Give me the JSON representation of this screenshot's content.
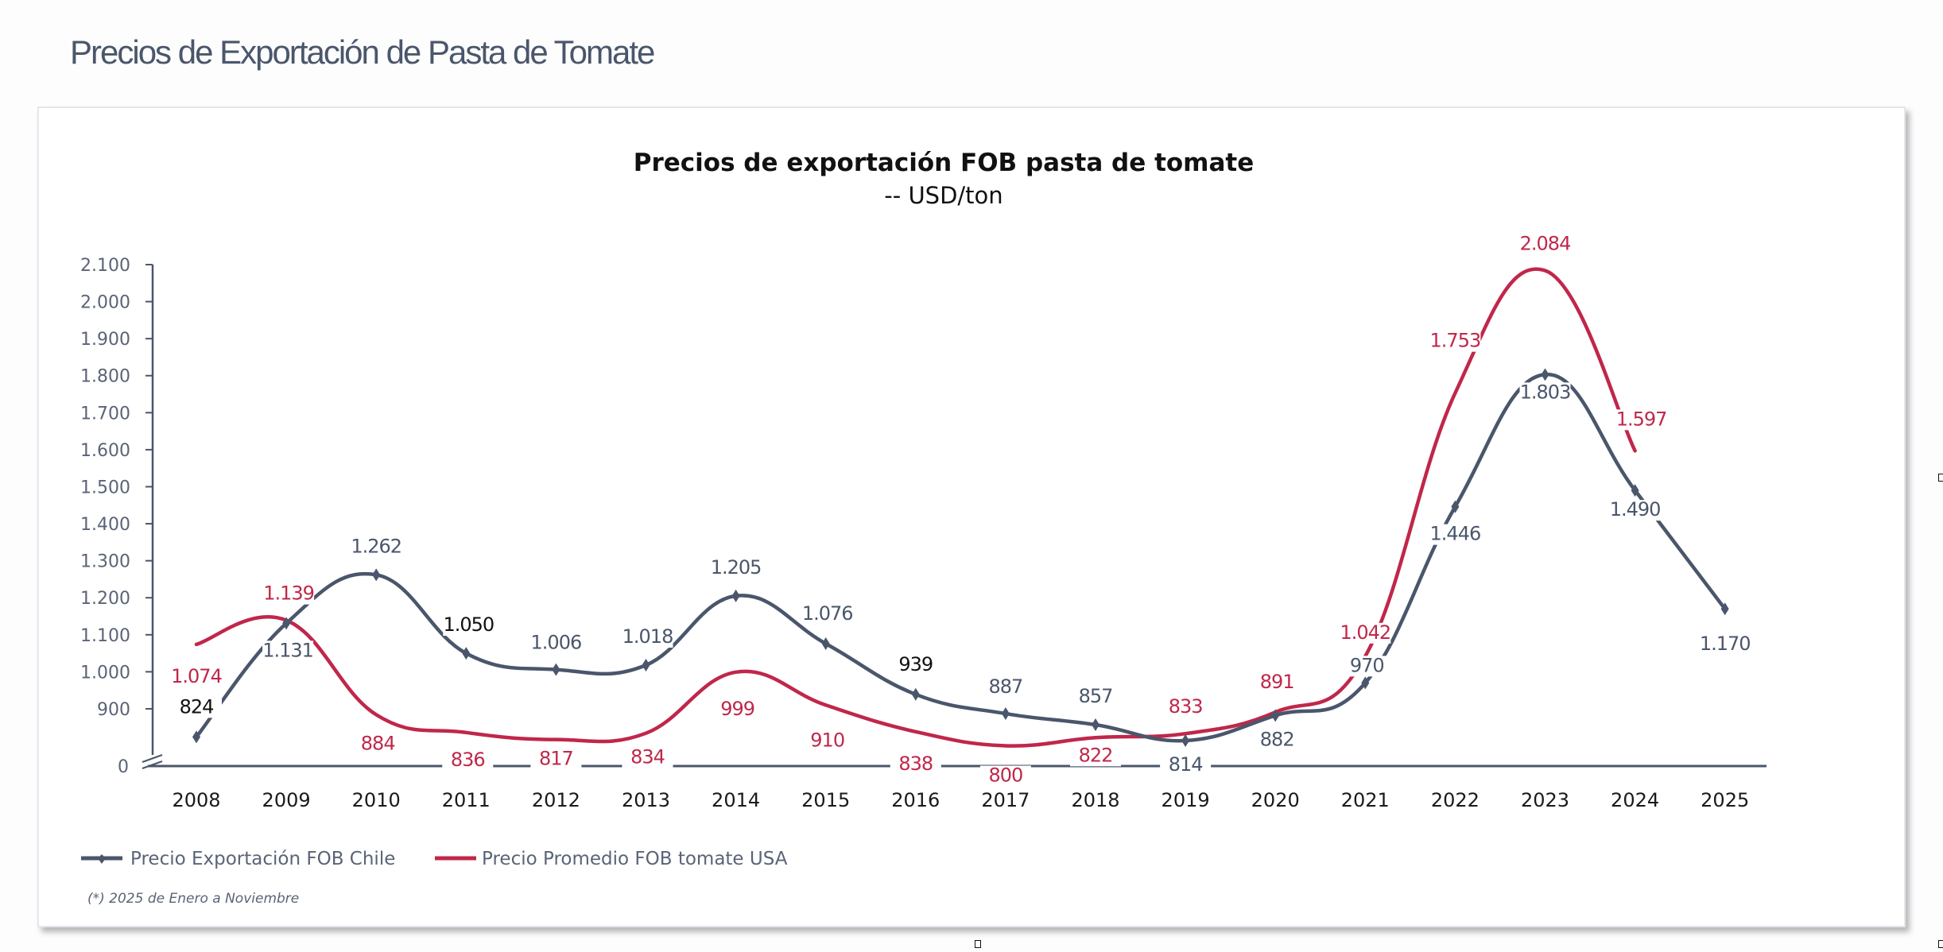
{
  "page": {
    "title": "Precios de Exportación de Pasta de Tomate"
  },
  "chart_data": {
    "type": "line",
    "title": "Precios de exportación FOB pasta de tomate",
    "subtitle": "-- USD/ton",
    "xlabel": "",
    "ylabel": "",
    "categories": [
      "2008",
      "2009",
      "2010",
      "2011",
      "2012",
      "2013",
      "2014",
      "2015",
      "2016",
      "2017",
      "2018",
      "2019",
      "2020",
      "2021",
      "2022",
      "2023",
      "2024",
      "2025"
    ],
    "y_ticks": [
      "2.100",
      "2.000",
      "1.900",
      "1.800",
      "1.700",
      "1.600",
      "1.500",
      "1.400",
      "1.300",
      "1.200",
      "1.100",
      "1.000",
      "900",
      "0"
    ],
    "y_tick_values": [
      2100,
      2000,
      1900,
      1800,
      1700,
      1600,
      1500,
      1400,
      1300,
      1200,
      1100,
      1000,
      900,
      0
    ],
    "ylim": [
      0,
      2100
    ],
    "axis_break": "between 0 and 900",
    "grid": false,
    "smooth": true,
    "legend_position": "bottom-left",
    "series": [
      {
        "name": "Precio Exportación FOB Chile",
        "color": "#4a566b",
        "marker": "diamond",
        "values": [
          824,
          1131,
          1262,
          1050,
          1006,
          1018,
          1205,
          1076,
          939,
          887,
          857,
          814,
          882,
          970,
          1446,
          1803,
          1490,
          1170
        ],
        "labels": [
          "824",
          "1.131",
          "1.262",
          "1.050",
          "1.006",
          "1.018",
          "1.205",
          "1.076",
          "939",
          "887",
          "857",
          "814",
          "882",
          "970",
          "1.446",
          "1.803",
          "1.490",
          "1.170"
        ]
      },
      {
        "name": "Precio Promedio FOB tomate USA",
        "color": "#c0274a",
        "marker": "none",
        "values": [
          1074,
          1139,
          884,
          836,
          817,
          834,
          999,
          910,
          838,
          800,
          822,
          833,
          891,
          1042,
          1753,
          2084,
          1597,
          null
        ],
        "labels": [
          "1.074",
          "1.139",
          "884",
          "836",
          "817",
          "834",
          "999",
          "910",
          "838",
          "800",
          "822",
          "833",
          "891",
          "1.042",
          "1.753",
          "2.084",
          "1.597",
          ""
        ]
      }
    ],
    "footnote": "(*) 2025 de Enero a Noviembre"
  }
}
